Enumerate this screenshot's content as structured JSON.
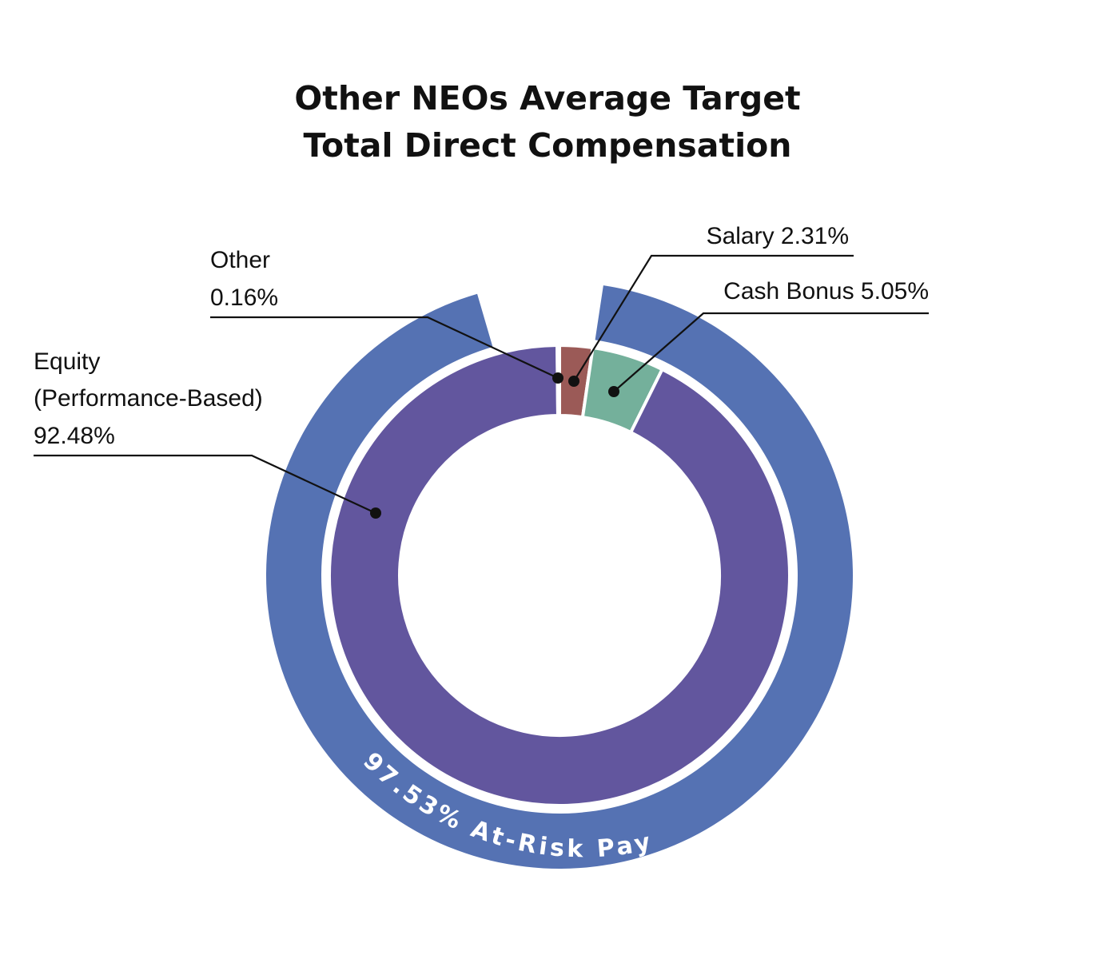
{
  "chart_data": {
    "type": "pie",
    "title_lines": [
      "Other NEOs Average Target",
      "Total Direct Compensation"
    ],
    "inner_ring": {
      "slices": [
        {
          "key": "salary",
          "value": 2.31,
          "color": "#9b5a57",
          "label_lines": [
            "Salary 2.31%"
          ]
        },
        {
          "key": "cash-bonus",
          "value": 5.05,
          "color": "#74b09b",
          "label_lines": [
            "Cash Bonus 5.05%"
          ]
        },
        {
          "key": "equity",
          "value": 92.48,
          "color": "#62569e",
          "label_lines": [
            "Equity",
            "(Performance-Based)",
            "92.48%"
          ]
        },
        {
          "key": "other",
          "value": 0.16,
          "color": "#8e98c8",
          "label_lines": [
            "Other",
            "0.16%"
          ]
        }
      ]
    },
    "outer_ring": {
      "value": 97.53,
      "color": "#5572b3",
      "label": "97.53% At-Risk Pay"
    }
  }
}
